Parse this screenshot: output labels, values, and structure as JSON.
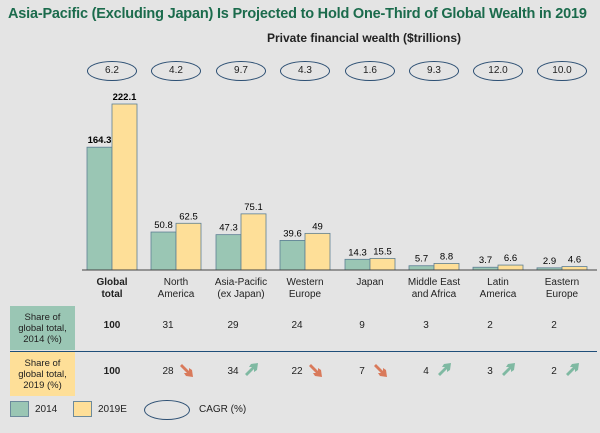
{
  "title": "Asia-Pacific (Excluding Japan) Is Projected to Hold One-Third of Global Wealth in 2019",
  "colors": {
    "2014": "#9ac6b4",
    "2019E": "#fedf98",
    "title": "#1b6b4c",
    "up": "#7fb9a2",
    "down": "#d97a5b"
  },
  "chart_data": {
    "type": "bar",
    "title": "Private financial wealth ($trillions)",
    "categories": [
      "Global total",
      "North America",
      "Asia-Pacific (ex Japan)",
      "Western Europe",
      "Japan",
      "Middle East and Africa",
      "Latin America",
      "Eastern Europe"
    ],
    "category_lines": [
      [
        "Global",
        "total"
      ],
      [
        "North",
        "America"
      ],
      [
        "Asia-Pacific",
        "(ex Japan)"
      ],
      [
        "Western",
        "Europe"
      ],
      [
        "Japan",
        ""
      ],
      [
        "Middle East",
        "and Africa"
      ],
      [
        "Latin",
        "America"
      ],
      [
        "Eastern",
        "Europe"
      ]
    ],
    "series": [
      {
        "name": "2014",
        "values": [
          164.3,
          50.8,
          47.3,
          39.6,
          14.3,
          5.7,
          3.7,
          2.9
        ]
      },
      {
        "name": "2019E",
        "values": [
          222.1,
          62.5,
          75.1,
          49.0,
          15.5,
          8.8,
          6.6,
          4.6
        ]
      }
    ],
    "cagr": [
      "6.2",
      "4.2",
      "9.7",
      "4.3",
      "1.6",
      "9.3",
      "12.0",
      "10.0"
    ],
    "ylim": [
      0,
      222.1
    ],
    "legend": {
      "s2014": "2014",
      "s2019": "2019E",
      "cagr": "CAGR (%)"
    }
  },
  "table": {
    "row2014_label": [
      "Share of",
      "global total,",
      "2014 (%)"
    ],
    "row2019_label": [
      "Share of",
      "global total,",
      "2019 (%)"
    ],
    "share2014": [
      "100",
      "31",
      "29",
      "24",
      "9",
      "3",
      "2",
      "2"
    ],
    "share2019": [
      "100",
      "28",
      "34",
      "22",
      "7",
      "4",
      "3",
      "2"
    ],
    "trend": [
      "",
      "down",
      "up",
      "down",
      "down",
      "up",
      "up",
      "up"
    ]
  }
}
